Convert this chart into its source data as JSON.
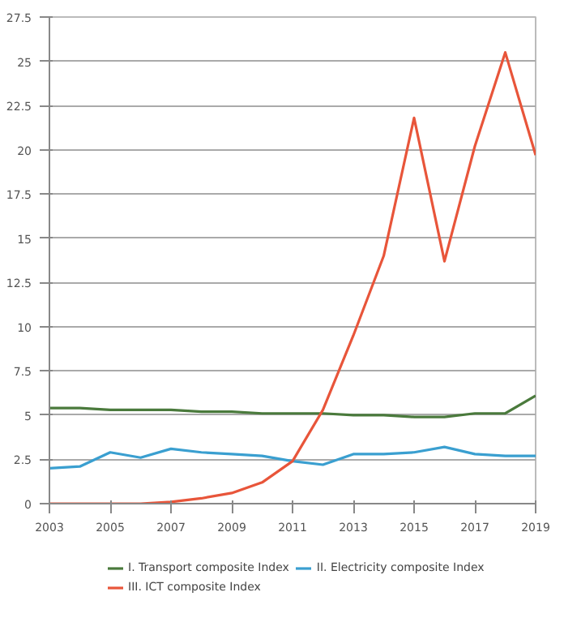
{
  "chart_data": {
    "type": "line",
    "x": [
      2003,
      2004,
      2005,
      2006,
      2007,
      2008,
      2009,
      2010,
      2011,
      2012,
      2013,
      2014,
      2015,
      2016,
      2017,
      2018,
      2019
    ],
    "series": [
      {
        "name": "I. Transport composite Index",
        "color": "#4a7a3c",
        "values": [
          5.4,
          5.4,
          5.3,
          5.3,
          5.3,
          5.2,
          5.2,
          5.1,
          5.1,
          5.1,
          5.0,
          5.0,
          4.9,
          4.9,
          5.1,
          5.1,
          6.1
        ]
      },
      {
        "name": "II. Electricity composite Index",
        "color": "#3a9fd0",
        "values": [
          2.0,
          2.1,
          2.9,
          2.6,
          3.1,
          2.9,
          2.8,
          2.7,
          2.4,
          2.2,
          2.8,
          2.8,
          2.9,
          3.2,
          2.8,
          2.7,
          2.7
        ]
      },
      {
        "name": "III. ICT composite Index",
        "color": "#e8553a",
        "values": [
          0,
          0,
          0,
          0,
          0.1,
          0.3,
          0.6,
          1.2,
          2.4,
          5.3,
          9.5,
          14,
          21.8,
          13.7,
          20.2,
          25.5,
          19.7
        ]
      }
    ],
    "xlim": [
      2003,
      2019
    ],
    "xticks": [
      2003,
      2005,
      2007,
      2009,
      2011,
      2013,
      2015,
      2017,
      2019
    ],
    "ylim": [
      0,
      27.5
    ],
    "yticks": [
      0,
      2.5,
      5,
      7.5,
      10,
      12.5,
      15,
      17.5,
      20,
      22.5,
      25,
      27.5
    ],
    "grid": "y",
    "legend": "bottom",
    "marker": "none",
    "line_style": "solid"
  }
}
